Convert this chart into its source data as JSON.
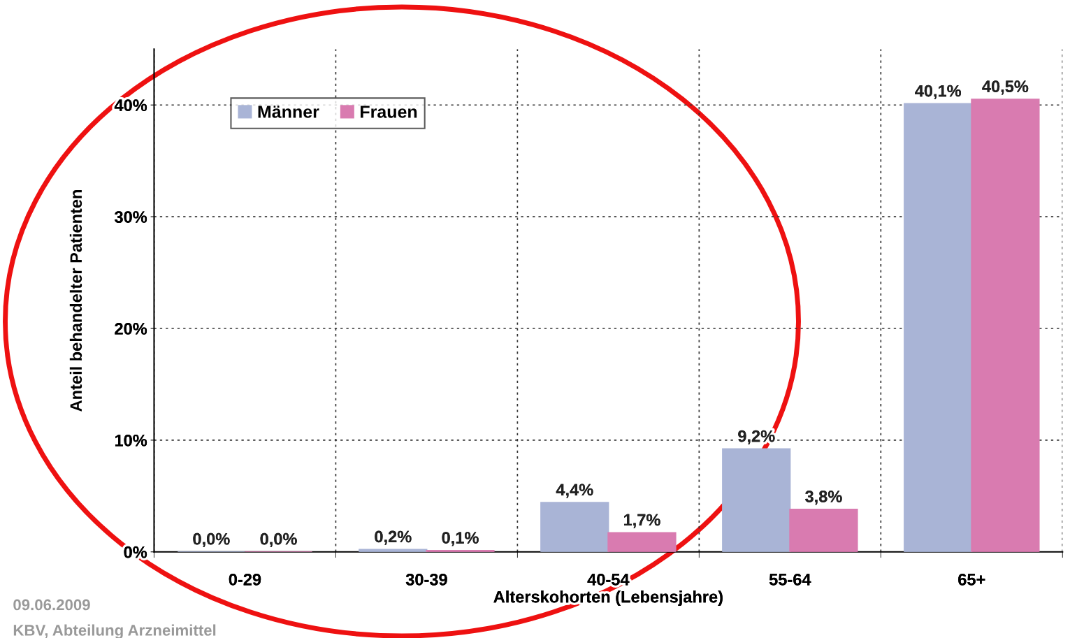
{
  "chart_data": {
    "type": "bar",
    "xlabel": "Alterskohorten (Lebensjahre)",
    "ylabel": "Anteil behandelter Patienten",
    "categories": [
      "0-29",
      "30-39",
      "40-54",
      "55-64",
      "65+"
    ],
    "series": [
      {
        "name": "Männer",
        "color": "#a9b4d6",
        "values": [
          0.0,
          0.2,
          4.4,
          9.2,
          40.1
        ],
        "value_labels": [
          "0,0%",
          "0,2%",
          "4,4%",
          "9,2%",
          "40,1%"
        ]
      },
      {
        "name": "Frauen",
        "color": "#d97bb0",
        "values": [
          0.0,
          0.1,
          1.7,
          3.8,
          40.5
        ],
        "value_labels": [
          "0,0%",
          "0,1%",
          "1,7%",
          "3,8%",
          "40,5%"
        ]
      }
    ],
    "ylim": [
      0,
      45
    ],
    "yticks": [
      {
        "value": 0,
        "label": "0%"
      },
      {
        "value": 10,
        "label": "10%"
      },
      {
        "value": 20,
        "label": "20%"
      },
      {
        "value": 30,
        "label": "30%"
      },
      {
        "value": 40,
        "label": "40%"
      }
    ],
    "grid": true,
    "legend": "top left",
    "annotations": [
      "09.06.2009",
      "KBV, Abteilung Arzneimittel"
    ]
  }
}
